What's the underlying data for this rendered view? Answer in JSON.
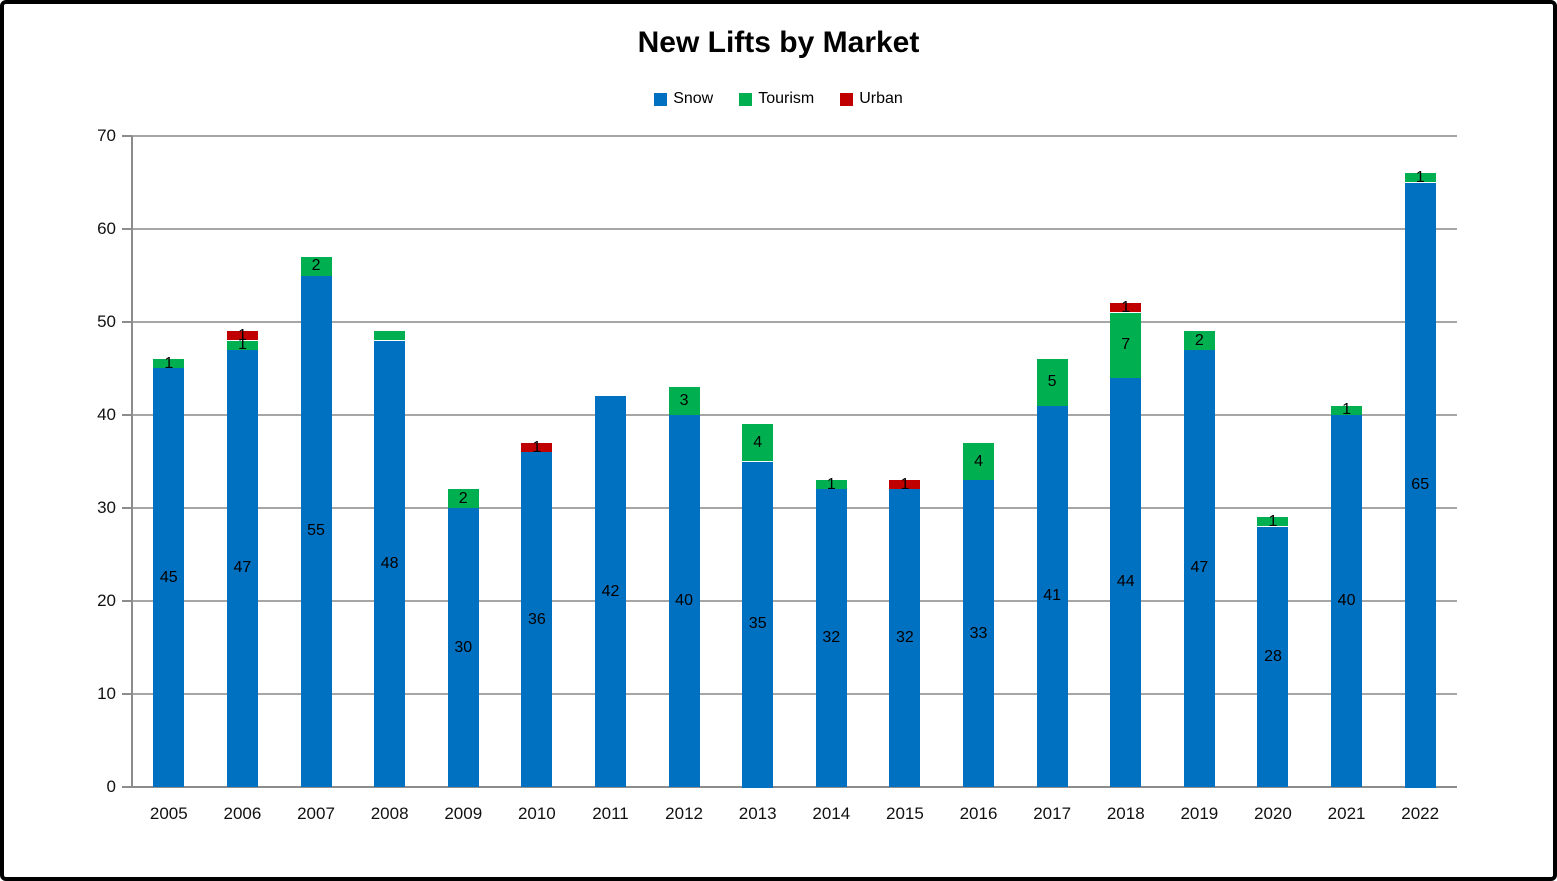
{
  "title": "New Lifts by Market",
  "colors": {
    "snow": "#0070C0",
    "tourism": "#00B050",
    "urban": "#C00000",
    "gridline": "#A6A6A6",
    "axis": "#8C8C8C"
  },
  "chart_data": {
    "type": "bar",
    "stacked": true,
    "title": "New Lifts by Market",
    "xlabel": "",
    "ylabel": "",
    "categories": [
      "2005",
      "2006",
      "2007",
      "2008",
      "2009",
      "2010",
      "2011",
      "2012",
      "2013",
      "2014",
      "2015",
      "2016",
      "2017",
      "2018",
      "2019",
      "2020",
      "2021",
      "2022"
    ],
    "series": [
      {
        "name": "Snow",
        "color": "#0070C0",
        "values": [
          45,
          47,
          55,
          48,
          30,
          36,
          42,
          40,
          35,
          32,
          32,
          33,
          41,
          44,
          47,
          28,
          40,
          65
        ]
      },
      {
        "name": "Tourism",
        "color": "#00B050",
        "values": [
          1,
          1,
          2,
          1,
          2,
          0,
          0,
          3,
          4,
          1,
          0,
          4,
          5,
          7,
          2,
          1,
          1,
          1
        ]
      },
      {
        "name": "Urban",
        "color": "#C00000",
        "values": [
          0,
          1,
          0,
          0,
          0,
          1,
          0,
          0,
          0,
          0,
          1,
          0,
          0,
          1,
          0,
          0,
          0,
          0
        ]
      }
    ],
    "data_labels": true,
    "hidden_labels": [
      {
        "series": "Tourism",
        "category": "2008"
      }
    ],
    "ylim": [
      0,
      70
    ],
    "yticks": [
      0,
      10,
      20,
      30,
      40,
      50,
      60,
      70
    ],
    "grid": true,
    "legend_position": "top",
    "legend_entries": [
      "Snow",
      "Tourism",
      "Urban"
    ]
  }
}
